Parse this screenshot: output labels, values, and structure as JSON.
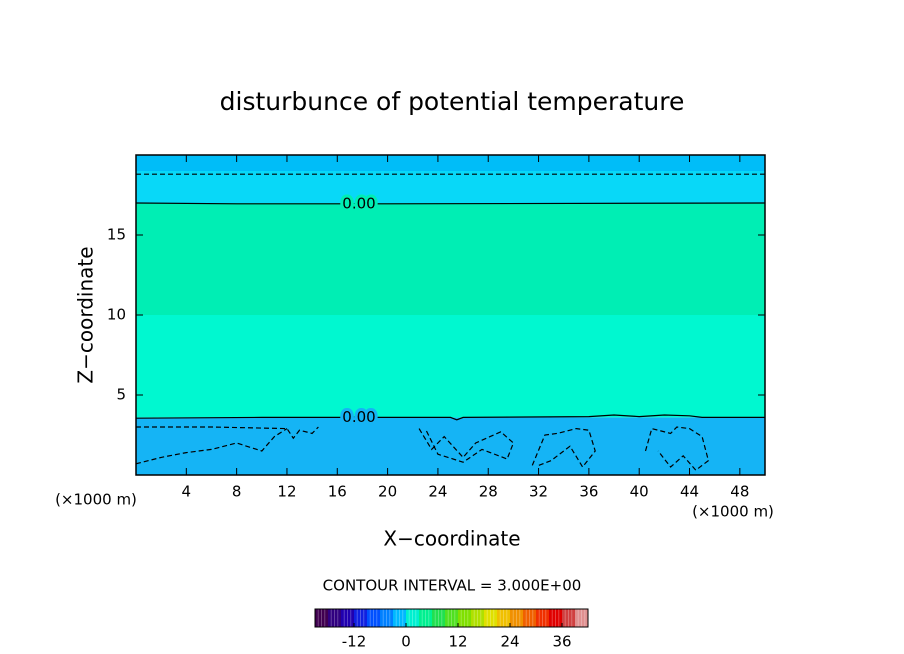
{
  "chart_data": {
    "type": "contour",
    "title": "disturbunce of potential temperature",
    "x_label": "X−coordinate",
    "y_label": "Z−coordinate",
    "x_unit": "(×1000 m)",
    "y_unit": "(×1000 m)",
    "xlim": [
      0,
      50
    ],
    "ylim": [
      0,
      20
    ],
    "xticks": [
      4,
      8,
      12,
      16,
      20,
      24,
      28,
      32,
      36,
      40,
      44,
      48
    ],
    "yticks": [
      5,
      10,
      15
    ],
    "fill_bands": [
      {
        "zlim": [
          0,
          3.6
        ],
        "color": "#15b4f5"
      },
      {
        "zlim": [
          3.6,
          10
        ],
        "color": "#00f8d0"
      },
      {
        "zlim": [
          10,
          17
        ],
        "color": "#00eeb4"
      },
      {
        "zlim": [
          17,
          19
        ],
        "color": "#08d8f8"
      },
      {
        "zlim": [
          19,
          20
        ],
        "color": "#00bdf8"
      }
    ],
    "contours": [
      {
        "level": 0,
        "label": "0.00",
        "x": [
          0,
          8,
          20,
          50
        ],
        "y": [
          17,
          16.95,
          16.95,
          17
        ]
      },
      {
        "level": 0,
        "label": "0.00",
        "x": [
          0,
          10,
          25,
          25.5,
          26,
          36,
          38,
          40,
          42,
          44,
          45,
          50
        ],
        "y": [
          3.55,
          3.6,
          3.6,
          3.45,
          3.6,
          3.65,
          3.75,
          3.65,
          3.75,
          3.7,
          3.6,
          3.6
        ]
      },
      {
        "level": -3,
        "x": [
          0,
          50
        ],
        "y": [
          18.8,
          18.8
        ]
      },
      {
        "level": -3,
        "x": [
          0,
          6,
          12,
          12.5,
          13,
          14,
          14.5
        ],
        "y": [
          3.0,
          3.0,
          2.9,
          2.3,
          2.8,
          2.6,
          3.0
        ]
      },
      {
        "level": -3,
        "x": [
          0,
          2,
          4,
          6,
          8,
          10,
          11,
          12
        ],
        "y": [
          0.7,
          1.1,
          1.4,
          1.6,
          2.0,
          1.5,
          2.4,
          2.9
        ]
      },
      {
        "level": -3,
        "x": [
          22.5,
          23.5,
          24.5,
          26,
          27,
          29,
          30,
          29.5,
          27.5,
          26,
          24,
          23
        ],
        "y": [
          2.9,
          1.6,
          2.4,
          1.1,
          2.0,
          2.7,
          2.0,
          1.0,
          1.6,
          0.8,
          1.3,
          2.9
        ]
      },
      {
        "level": -3,
        "x": [
          31.5,
          32.5,
          33.5,
          35,
          36,
          36.5,
          35.5,
          34.5,
          33,
          32
        ],
        "y": [
          0.6,
          2.5,
          2.6,
          2.9,
          2.8,
          1.5,
          0.5,
          1.8,
          0.9,
          0.6
        ]
      },
      {
        "level": -3,
        "x": [
          40.5,
          41,
          42.5,
          43,
          44,
          45,
          45.5,
          44.5,
          43.5,
          42.5,
          41.5
        ],
        "y": [
          1.5,
          2.9,
          2.6,
          3.0,
          2.9,
          2.4,
          0.9,
          0.3,
          1.2,
          0.5,
          1.5
        ]
      }
    ],
    "contour_interval": "CONTOUR INTERVAL = 3.000E+00",
    "colorbar": {
      "lim": [
        -21,
        42
      ],
      "step": 3,
      "ticks": [
        -12,
        0,
        12,
        24,
        36
      ],
      "colors": [
        "#400050",
        "#300080",
        "#2000b0",
        "#1020e0",
        "#0050ff",
        "#0080ff",
        "#00b8ff",
        "#00f0d0",
        "#00f090",
        "#20e050",
        "#50e020",
        "#80e000",
        "#b0e000",
        "#e0e000",
        "#f0c000",
        "#f09000",
        "#f06000",
        "#f03000",
        "#e00000",
        "#d04040",
        "#e09090"
      ]
    }
  }
}
